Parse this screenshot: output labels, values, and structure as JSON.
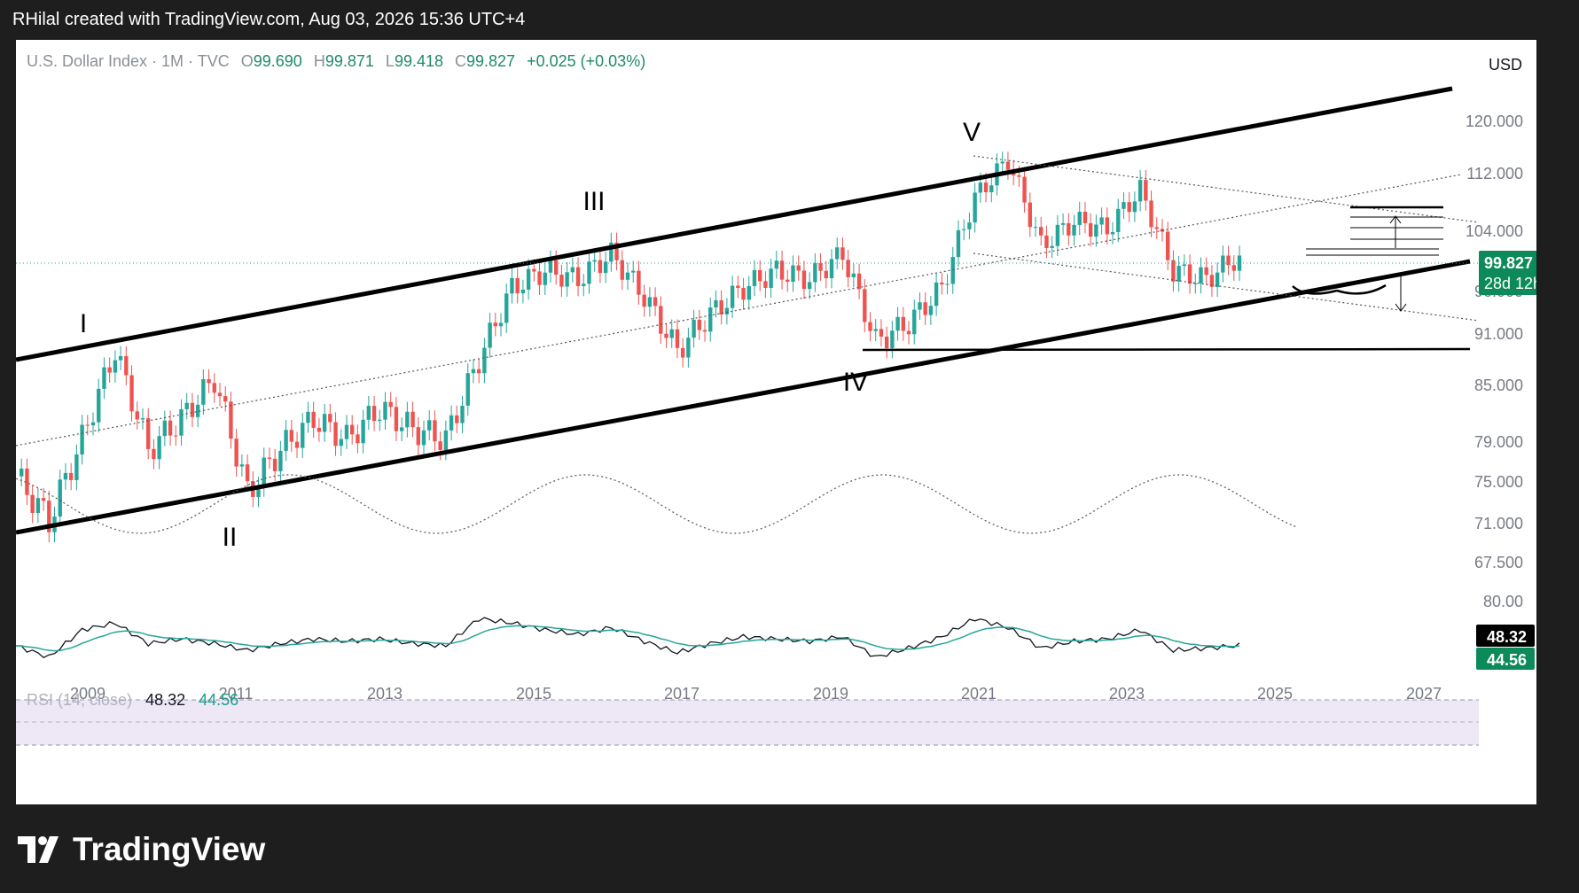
{
  "header": {
    "title": "RHilal created with TradingView.com, Aug 03, 2026 15:36 UTC+4"
  },
  "legend": {
    "symbol": "U.S. Dollar Index · 1M · TVC",
    "o_label": "O",
    "o": "99.690",
    "h_label": "H",
    "h": "99.871",
    "l_label": "L",
    "l": "99.418",
    "c_label": "C",
    "c": "99.827",
    "change": "+0.025 (+0.03%)"
  },
  "currency": "USD",
  "price_scale": {
    "ticks": [
      "120.000",
      "112.000",
      "104.000",
      "96.000",
      "91.000",
      "85.000",
      "79.000",
      "75.000",
      "71.000",
      "67.500"
    ],
    "last_price": "99.827",
    "countdown": "28d 12h"
  },
  "rsi": {
    "label": "RSI (14, close)",
    "value": "48.32",
    "ma_value": "44.56",
    "scale_tick": "80.00"
  },
  "time_axis": [
    "2009",
    "2011",
    "2013",
    "2015",
    "2017",
    "2019",
    "2021",
    "2023",
    "2025",
    "2027"
  ],
  "wave_labels": [
    "I",
    "II",
    "III",
    "IV",
    "V"
  ],
  "colors": {
    "up": "#26a69a",
    "down": "#ef5350",
    "rsi_line": "#131722",
    "rsi_ma": "#26a69a",
    "band": "#ede7f6"
  },
  "footer": {
    "brand": "TradingView"
  },
  "chart_data": {
    "type": "candlestick",
    "title": "U.S. Dollar Index · 1M · TVC",
    "ylim": [
      67.5,
      124
    ],
    "y_scale": "log",
    "x": [
      "2008-01",
      "2008-07",
      "2009-01",
      "2009-07",
      "2010-01",
      "2010-07",
      "2011-01",
      "2011-07",
      "2012-01",
      "2012-07",
      "2013-01",
      "2013-07",
      "2014-01",
      "2014-07",
      "2015-01",
      "2015-07",
      "2016-01",
      "2016-07",
      "2017-01",
      "2017-07",
      "2018-01",
      "2018-07",
      "2019-01",
      "2019-07",
      "2020-01",
      "2020-07",
      "2021-01",
      "2021-07",
      "2022-01",
      "2022-07",
      "2023-01",
      "2023-07",
      "2024-01",
      "2024-07",
      "2025-01",
      "2025-07",
      "2026-01",
      "2026-07"
    ],
    "close": [
      76.5,
      72.5,
      80,
      89,
      79,
      82,
      86,
      75,
      79,
      82,
      80,
      83,
      81,
      80,
      88,
      96,
      98,
      97,
      100,
      95,
      89,
      93,
      96,
      98,
      97,
      100,
      90,
      92,
      96,
      107,
      112,
      101,
      104,
      103,
      108,
      98,
      97,
      99.8
    ],
    "rsi": [
      48,
      38,
      62,
      68,
      50,
      54,
      50,
      44,
      50,
      54,
      52,
      54,
      50,
      48,
      72,
      68,
      62,
      58,
      64,
      52,
      42,
      50,
      56,
      54,
      52,
      56,
      38,
      46,
      56,
      72,
      64,
      46,
      52,
      54,
      62,
      44,
      46,
      48.32
    ],
    "annotations": [
      "I",
      "II",
      "III",
      "IV",
      "V"
    ]
  }
}
